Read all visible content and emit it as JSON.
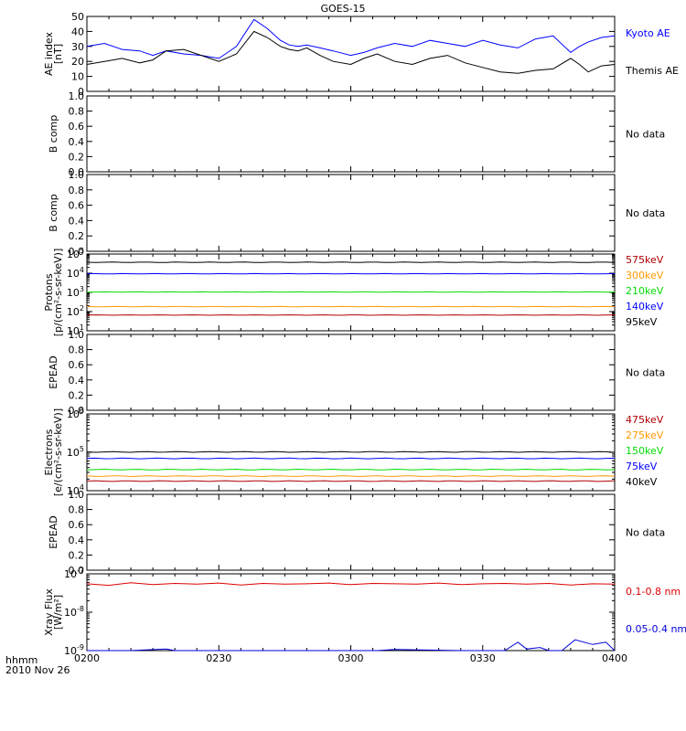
{
  "title": "GOES-15",
  "footer": {
    "line1": "hhmm",
    "line2": "2010 Nov 26"
  },
  "x_axis": {
    "labels": [
      "0200",
      "0230",
      "0300",
      "0330",
      "0400"
    ]
  },
  "no_data_label": "No data",
  "chart_data": [
    {
      "type": "line",
      "id": "ae",
      "ylabel": [
        "AE index",
        "[nT]"
      ],
      "ylim": [
        0,
        50
      ],
      "yticks": [
        "0",
        "10",
        "20",
        "30",
        "40",
        "50"
      ],
      "x_range": [
        0,
        120
      ],
      "series": [
        {
          "name": "Kyoto AE",
          "color": "#0000ff",
          "x": [
            0,
            4,
            8,
            12,
            15,
            18,
            22,
            26,
            30,
            34,
            38,
            41,
            44,
            46,
            48,
            50,
            53,
            56,
            60,
            63,
            66,
            70,
            74,
            78,
            82,
            86,
            90,
            94,
            98,
            102,
            106,
            110,
            112,
            114,
            117,
            120
          ],
          "y": [
            30,
            32,
            28,
            27,
            24,
            27,
            25,
            24,
            22,
            30,
            48,
            42,
            34,
            31,
            30,
            31,
            29,
            27,
            24,
            26,
            29,
            32,
            30,
            34,
            32,
            30,
            34,
            31,
            29,
            35,
            37,
            26,
            30,
            33,
            36,
            37
          ]
        },
        {
          "name": "Themis AE",
          "color": "#000000",
          "x": [
            0,
            4,
            8,
            12,
            15,
            18,
            22,
            26,
            30,
            34,
            38,
            41,
            44,
            46,
            48,
            50,
            53,
            56,
            60,
            63,
            66,
            70,
            74,
            78,
            82,
            86,
            90,
            94,
            98,
            102,
            106,
            110,
            112,
            114,
            117,
            120
          ],
          "y": [
            18,
            20,
            22,
            19,
            21,
            27,
            28,
            24,
            20,
            25,
            40,
            36,
            30,
            28,
            27,
            29,
            24,
            20,
            18,
            22,
            25,
            20,
            18,
            22,
            24,
            19,
            16,
            13,
            12,
            14,
            15,
            22,
            18,
            13,
            17,
            18
          ]
        }
      ]
    },
    {
      "type": "empty",
      "id": "b1",
      "ylabel": [
        "B comp"
      ],
      "ylim": [
        0,
        1
      ],
      "yticks": [
        "0.0",
        "0.2",
        "0.4",
        "0.6",
        "0.8",
        "1.0"
      ],
      "note": "No data"
    },
    {
      "type": "empty",
      "id": "b2",
      "ylabel": [
        "B comp"
      ],
      "ylim": [
        0,
        1
      ],
      "yticks": [
        "0.0",
        "0.2",
        "0.4",
        "0.6",
        "0.8",
        "1.0"
      ],
      "note": "No data"
    },
    {
      "type": "line",
      "id": "protons",
      "ylabel": [
        "Protons",
        "[p/(cm²-s-sr-keV)]"
      ],
      "log_scale": true,
      "ylim_exp": [
        1,
        5
      ],
      "x_range": [
        0,
        120
      ],
      "series": [
        {
          "name": "575keV",
          "color": "#b00000",
          "log10": 1.82
        },
        {
          "name": "300keV",
          "color": "#ff9900",
          "log10": 2.26
        },
        {
          "name": "210keV",
          "color": "#00dd00",
          "log10": 3.02
        },
        {
          "name": "140keV",
          "color": "#0000ff",
          "log10": 3.97
        },
        {
          "name": "95keV",
          "color": "#000000",
          "log10": 4.57
        }
      ]
    },
    {
      "type": "empty",
      "id": "epead1",
      "ylabel": [
        "EPEAD"
      ],
      "ylim": [
        0,
        1
      ],
      "yticks": [
        "0.0",
        "0.2",
        "0.4",
        "0.6",
        "0.8",
        "1.0"
      ],
      "note": "No data"
    },
    {
      "type": "line",
      "id": "electrons",
      "ylabel": [
        "Electrons",
        "[e/(cm²-s-sr-keV)]"
      ],
      "log_scale": true,
      "ylim_exp": [
        4,
        6
      ],
      "x_range": [
        0,
        120
      ],
      "series": [
        {
          "name": "475keV",
          "color": "#b00000",
          "log10": 4.25
        },
        {
          "name": "275keV",
          "color": "#ff9900",
          "log10": 4.38
        },
        {
          "name": "150keV",
          "color": "#00dd00",
          "log10": 4.55
        },
        {
          "name": "75keV",
          "color": "#0000ff",
          "log10": 4.84
        },
        {
          "name": "40keV",
          "color": "#000000",
          "log10": 5.01
        }
      ]
    },
    {
      "type": "empty",
      "id": "epead2",
      "ylabel": [
        "EPEAD"
      ],
      "ylim": [
        0,
        1
      ],
      "yticks": [
        "0.0",
        "0.2",
        "0.4",
        "0.6",
        "0.8",
        "1.0"
      ],
      "note": "No data"
    },
    {
      "type": "line",
      "id": "xray",
      "ylabel": [
        "Xray Flux",
        "[W/m²]"
      ],
      "log_scale": true,
      "ylim_exp": [
        -9,
        -7
      ],
      "x_range": [
        0,
        120
      ],
      "series": [
        {
          "name": "0.1-0.8 nm",
          "color": "#dd0000",
          "x": [
            0,
            5,
            10,
            15,
            20,
            25,
            30,
            35,
            40,
            45,
            50,
            55,
            60,
            65,
            70,
            75,
            80,
            85,
            90,
            95,
            100,
            105,
            110,
            115,
            120
          ],
          "y_log10": [
            -7.26,
            -7.3,
            -7.23,
            -7.28,
            -7.25,
            -7.27,
            -7.24,
            -7.29,
            -7.25,
            -7.27,
            -7.26,
            -7.24,
            -7.28,
            -7.25,
            -7.26,
            -7.27,
            -7.24,
            -7.28,
            -7.26,
            -7.25,
            -7.27,
            -7.25,
            -7.29,
            -7.26,
            -7.27
          ]
        },
        {
          "name": "0.05-0.4 nm",
          "color": "#0000dd",
          "x": [
            0,
            10,
            18,
            20,
            40,
            52,
            66,
            70,
            85,
            95,
            98,
            100,
            103,
            105,
            108,
            111,
            115,
            118,
            120
          ],
          "y_log10": [
            -9,
            -9,
            -8.96,
            -9,
            -9,
            -9,
            -9,
            -8.97,
            -9,
            -9,
            -8.78,
            -8.96,
            -8.92,
            -9,
            -9,
            -8.72,
            -8.84,
            -8.78,
            -9
          ]
        }
      ]
    }
  ]
}
